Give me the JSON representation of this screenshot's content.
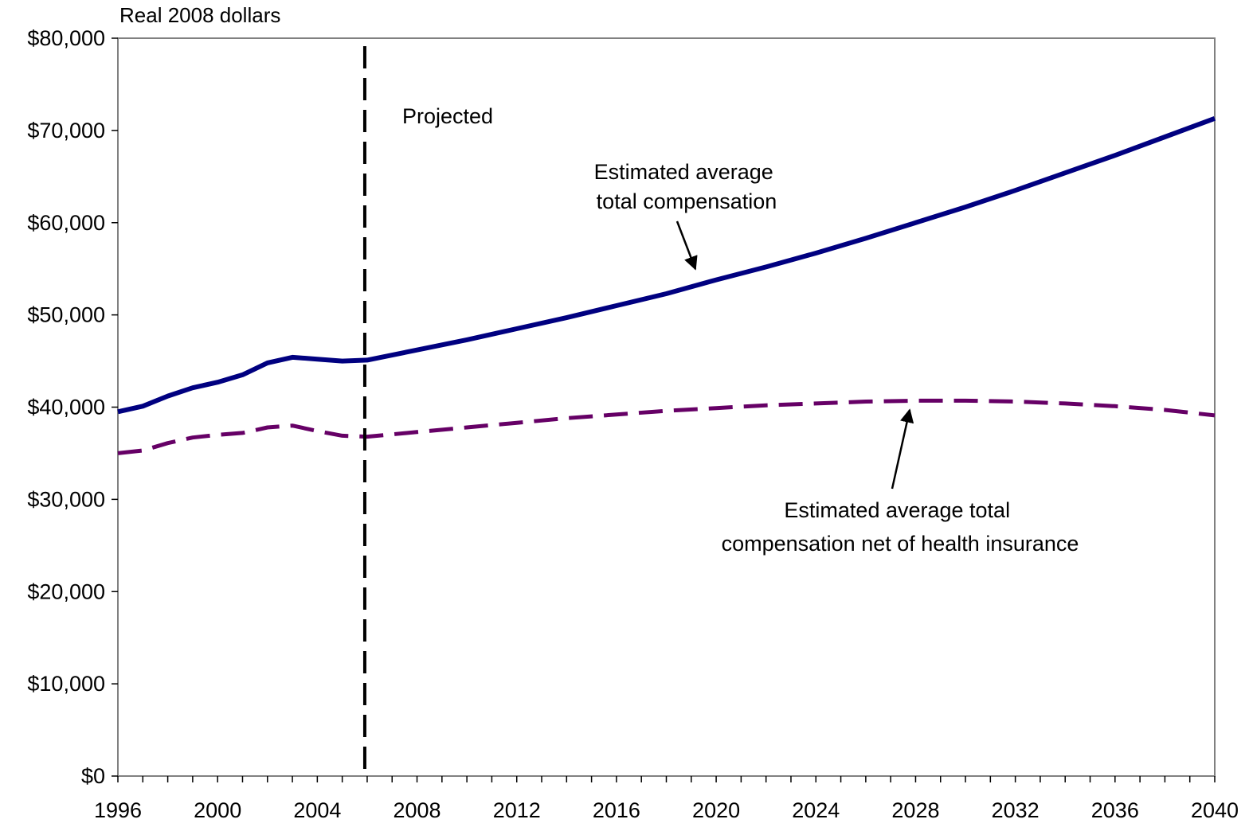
{
  "chart_data": {
    "type": "line",
    "units_label": "Real 2008 dollars",
    "xlim": [
      1996,
      2040
    ],
    "ylim": [
      0,
      80000
    ],
    "x_ticks": [
      1996,
      2000,
      2004,
      2008,
      2012,
      2016,
      2020,
      2024,
      2028,
      2032,
      2036,
      2040
    ],
    "x_tick_labels": [
      "1996",
      "2000",
      "2004",
      "2008",
      "2012",
      "2016",
      "2020",
      "2024",
      "2028",
      "2032",
      "2036",
      "2040"
    ],
    "y_ticks": [
      0,
      10000,
      20000,
      30000,
      40000,
      50000,
      60000,
      70000,
      80000
    ],
    "y_tick_labels": [
      "$0",
      "$10,000",
      "$20,000",
      "$30,000",
      "$40,000",
      "$50,000",
      "$60,000",
      "$70,000",
      "$80,000"
    ],
    "projection_start": 2006,
    "projection_label": "Projected",
    "grid": false,
    "series": [
      {
        "id": "total",
        "color": "#000080",
        "style": "solid",
        "x": [
          1996,
          1997,
          1998,
          1999,
          2000,
          2001,
          2002,
          2003,
          2004,
          2005,
          2006,
          2008,
          2010,
          2012,
          2014,
          2016,
          2018,
          2020,
          2022,
          2024,
          2026,
          2028,
          2030,
          2032,
          2034,
          2036,
          2038,
          2040
        ],
        "values": [
          39500,
          40100,
          41200,
          42100,
          42700,
          43500,
          44800,
          45400,
          45200,
          45000,
          45100,
          46200,
          47300,
          48500,
          49700,
          51000,
          52300,
          53800,
          55200,
          56700,
          58300,
          60000,
          61700,
          63500,
          65400,
          67300,
          69300,
          71300
        ]
      },
      {
        "id": "net_of_health",
        "color": "#660066",
        "style": "dashed",
        "x": [
          1996,
          1997,
          1998,
          1999,
          2000,
          2001,
          2002,
          2003,
          2004,
          2005,
          2006,
          2008,
          2010,
          2012,
          2014,
          2016,
          2018,
          2020,
          2022,
          2024,
          2026,
          2028,
          2030,
          2032,
          2034,
          2036,
          2038,
          2040
        ],
        "values": [
          35000,
          35300,
          36100,
          36700,
          37000,
          37200,
          37800,
          38000,
          37400,
          36900,
          36800,
          37300,
          37800,
          38300,
          38800,
          39200,
          39600,
          39900,
          40200,
          40400,
          40600,
          40700,
          40700,
          40600,
          40400,
          40100,
          39700,
          39100
        ]
      }
    ],
    "annotations": [
      {
        "id": "total-annot",
        "lines": [
          "Estimated average",
          "total compensation"
        ]
      },
      {
        "id": "net-annot",
        "lines": [
          "Estimated average total",
          "compensation net of health insurance"
        ]
      }
    ]
  }
}
